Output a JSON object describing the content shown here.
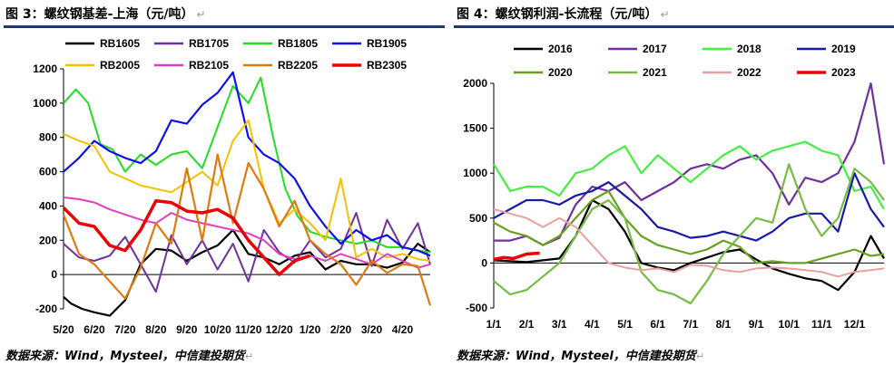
{
  "left": {
    "title": "图 3：螺纹钢基差-上海（元/吨）",
    "source": "数据来源：Wind，Mysteel，中信建投期货",
    "chart_data": {
      "type": "line",
      "title": "图 3：螺纹钢基差-上海（元/吨）",
      "xlabel": "",
      "ylabel": "",
      "ylim": [
        -200,
        1200
      ],
      "yticks": [
        -200,
        0,
        200,
        400,
        600,
        800,
        1000,
        1200
      ],
      "xticks": [
        "5/20",
        "6/20",
        "7/20",
        "8/20",
        "9/20",
        "10/20",
        "11/20",
        "12/20",
        "1/20",
        "2/20",
        "3/20",
        "4/20"
      ],
      "legend": "top",
      "series": [
        {
          "name": "RB1605",
          "color": "#000000",
          "width": 2.2,
          "x": [
            0,
            0.25,
            0.6,
            1,
            1.5,
            2,
            2.5,
            3,
            3.5,
            4,
            4.5,
            5,
            5.5,
            6,
            6.5,
            7,
            7.5,
            8,
            8.5,
            9,
            9.5,
            10,
            10.5,
            11,
            11.5,
            11.9
          ],
          "y": [
            -130,
            -170,
            -200,
            -220,
            -240,
            -150,
            60,
            150,
            140,
            80,
            130,
            170,
            260,
            120,
            100,
            60,
            110,
            130,
            30,
            80,
            60,
            60,
            40,
            70,
            180,
            130
          ]
        },
        {
          "name": "RB1705",
          "color": "#7030a0",
          "width": 2.0,
          "x": [
            0,
            0.5,
            1,
            1.5,
            2,
            2.5,
            3,
            3.5,
            4,
            4.5,
            5,
            5.5,
            6,
            6.5,
            7,
            7.5,
            8,
            8.5,
            9,
            9.5,
            10,
            10.5,
            11,
            11.5,
            11.9
          ],
          "y": [
            180,
            100,
            80,
            110,
            220,
            60,
            -100,
            230,
            60,
            200,
            30,
            180,
            -40,
            260,
            130,
            70,
            200,
            100,
            150,
            360,
            50,
            320,
            150,
            300,
            60
          ]
        },
        {
          "name": "RB1805",
          "color": "#22dd22",
          "width": 2.0,
          "x": [
            0,
            0.4,
            0.8,
            1.2,
            1.6,
            2,
            2.5,
            3,
            3.5,
            4,
            4.5,
            5,
            5.5,
            6,
            6.4,
            6.8,
            7.2,
            7.6,
            8,
            8.5,
            9,
            9.5,
            10,
            10.5,
            11,
            11.5,
            11.9
          ],
          "y": [
            1000,
            1080,
            1000,
            760,
            730,
            600,
            700,
            640,
            700,
            720,
            620,
            860,
            1100,
            1000,
            1150,
            800,
            500,
            340,
            250,
            220,
            200,
            180,
            200,
            160,
            160,
            140,
            130
          ]
        },
        {
          "name": "RB1905",
          "color": "#1010ee",
          "width": 2.2,
          "x": [
            0,
            0.5,
            1,
            1.5,
            2,
            2.5,
            3,
            3.5,
            4,
            4.5,
            5,
            5.5,
            6,
            6.5,
            7,
            7.5,
            8,
            8.5,
            9,
            9.5,
            10,
            10.5,
            11,
            11.5,
            11.9
          ],
          "y": [
            600,
            680,
            780,
            720,
            680,
            650,
            720,
            900,
            880,
            990,
            1060,
            1180,
            800,
            700,
            650,
            560,
            400,
            280,
            180,
            260,
            200,
            230,
            160,
            140,
            110
          ]
        },
        {
          "name": "RB2005",
          "color": "#f5c200",
          "width": 2.0,
          "x": [
            0,
            0.5,
            1,
            1.5,
            2,
            2.5,
            3,
            3.5,
            4,
            4.5,
            5,
            5.5,
            6,
            6.5,
            7,
            7.5,
            8,
            8.5,
            9,
            9.5,
            10,
            10.5,
            11,
            11.5,
            11.9
          ],
          "y": [
            820,
            780,
            750,
            600,
            560,
            520,
            500,
            480,
            540,
            600,
            520,
            780,
            900,
            500,
            300,
            380,
            300,
            200,
            560,
            100,
            150,
            100,
            120,
            90,
            80
          ]
        },
        {
          "name": "RB2105",
          "color": "#e040c0",
          "width": 2.0,
          "x": [
            0,
            0.5,
            1,
            1.5,
            2,
            2.5,
            3,
            3.5,
            4,
            4.5,
            5,
            5.5,
            6,
            6.5,
            7,
            7.5,
            8,
            8.5,
            9,
            9.5,
            10,
            10.5,
            11,
            11.5,
            11.9
          ],
          "y": [
            450,
            440,
            420,
            380,
            350,
            320,
            300,
            360,
            320,
            300,
            280,
            260,
            240,
            200,
            120,
            90,
            110,
            80,
            120,
            90,
            60,
            120,
            80,
            40,
            60
          ]
        },
        {
          "name": "RB2205",
          "color": "#e07a10",
          "width": 2.2,
          "x": [
            0,
            0.5,
            1,
            1.5,
            2,
            2.5,
            3,
            3.5,
            4,
            4.5,
            5,
            5.5,
            6,
            6.5,
            7,
            7.5,
            8,
            8.5,
            9,
            9.5,
            10,
            10.5,
            11,
            11.5,
            11.9
          ],
          "y": [
            350,
            120,
            60,
            -40,
            -140,
            40,
            300,
            180,
            620,
            200,
            700,
            300,
            650,
            500,
            280,
            430,
            200,
            120,
            60,
            -60,
            80,
            10,
            60,
            50,
            -180
          ]
        },
        {
          "name": "RB2305",
          "color": "#ee0000",
          "width": 3.5,
          "x": [
            0,
            0.5,
            1,
            1.5,
            2,
            2.5,
            3,
            3.5,
            4,
            4.5,
            5,
            5.5,
            6,
            6.5,
            7,
            7.5,
            8
          ],
          "y": [
            390,
            300,
            280,
            170,
            140,
            260,
            430,
            420,
            370,
            360,
            380,
            330,
            200,
            100,
            0,
            80,
            110
          ]
        }
      ]
    }
  },
  "right": {
    "title": "图 4：螺纹钢利润-长流程（元/吨）",
    "source": "数据来源：Wind，Mysteel，中信建投期货",
    "chart_data": {
      "type": "line",
      "title": "图 4：螺纹钢利润-长流程（元/吨）",
      "xlabel": "",
      "ylabel": "",
      "ylim": [
        -500,
        2000
      ],
      "yticks": [
        -500,
        0,
        500,
        1000,
        1500,
        2000
      ],
      "xticks": [
        "1/1",
        "2/1",
        "3/1",
        "4/1",
        "5/1",
        "6/1",
        "7/1",
        "8/1",
        "9/1",
        "10/1",
        "11/1",
        "12/1"
      ],
      "legend": "top",
      "series": [
        {
          "name": "2016",
          "color": "#000000",
          "width": 2.2,
          "x": [
            1,
            1.5,
            2,
            2.5,
            3,
            3.5,
            4,
            4.5,
            5,
            5.5,
            6,
            6.5,
            7,
            7.5,
            8,
            8.5,
            9,
            9.5,
            10,
            10.5,
            11,
            11.5,
            12,
            12.5,
            12.9
          ],
          "y": [
            30,
            20,
            10,
            30,
            50,
            300,
            700,
            600,
            350,
            0,
            -50,
            -80,
            0,
            60,
            120,
            150,
            40,
            -60,
            -120,
            -170,
            -200,
            -300,
            -100,
            300,
            50
          ]
        },
        {
          "name": "2017",
          "color": "#7030a0",
          "width": 2.2,
          "x": [
            1,
            1.5,
            2,
            2.5,
            3,
            3.5,
            4,
            4.5,
            5,
            5.5,
            6,
            6.5,
            7,
            7.5,
            8,
            8.5,
            9,
            9.5,
            10,
            10.5,
            11,
            11.5,
            12,
            12.5,
            12.9
          ],
          "y": [
            250,
            250,
            300,
            200,
            280,
            650,
            850,
            800,
            900,
            700,
            800,
            900,
            1050,
            1100,
            1050,
            1150,
            1200,
            1000,
            650,
            950,
            900,
            1000,
            1350,
            2000,
            1100
          ]
        },
        {
          "name": "2018",
          "color": "#44ee44",
          "width": 2.2,
          "x": [
            1,
            1.5,
            2,
            2.5,
            3,
            3.5,
            4,
            4.5,
            5,
            5.5,
            6,
            6.5,
            7,
            7.5,
            8,
            8.5,
            9,
            9.5,
            10,
            10.5,
            11,
            11.5,
            12,
            12.5,
            12.9
          ],
          "y": [
            1100,
            800,
            850,
            850,
            750,
            1000,
            1050,
            1200,
            1300,
            1000,
            1200,
            1050,
            900,
            1050,
            1200,
            1300,
            1150,
            1250,
            1300,
            1350,
            1250,
            1200,
            800,
            850,
            600
          ]
        },
        {
          "name": "2019",
          "color": "#1a1aaa",
          "width": 2.2,
          "x": [
            1,
            1.5,
            2,
            2.5,
            3,
            3.5,
            4,
            4.5,
            5,
            5.5,
            6,
            6.5,
            7,
            7.5,
            8,
            8.5,
            9,
            9.5,
            10,
            10.5,
            11,
            11.5,
            12,
            12.5,
            12.9
          ],
          "y": [
            500,
            600,
            700,
            700,
            650,
            750,
            800,
            900,
            750,
            600,
            400,
            350,
            280,
            300,
            350,
            300,
            250,
            350,
            500,
            550,
            550,
            350,
            1000,
            600,
            400
          ]
        },
        {
          "name": "2020",
          "color": "#6aa020",
          "width": 2.2,
          "x": [
            1,
            1.5,
            2,
            2.5,
            3,
            3.5,
            4,
            4.5,
            5,
            5.5,
            6,
            6.5,
            7,
            7.5,
            8,
            8.5,
            9,
            9.5,
            10,
            10.5,
            11,
            11.5,
            12,
            12.5,
            12.9
          ],
          "y": [
            450,
            350,
            300,
            200,
            300,
            500,
            700,
            800,
            500,
            300,
            200,
            150,
            100,
            150,
            250,
            180,
            0,
            20,
            0,
            0,
            50,
            100,
            150,
            80,
            100
          ]
        },
        {
          "name": "2021",
          "color": "#77bb44",
          "width": 2.2,
          "x": [
            1,
            1.5,
            2,
            2.5,
            3,
            3.5,
            4,
            4.5,
            5,
            5.5,
            6,
            6.5,
            7,
            7.5,
            8,
            8.5,
            9,
            9.5,
            10,
            10.5,
            11,
            11.5,
            12,
            12.5,
            12.9
          ],
          "y": [
            -200,
            -350,
            -300,
            -150,
            0,
            300,
            600,
            700,
            500,
            -100,
            -300,
            -350,
            -450,
            -200,
            100,
            300,
            500,
            450,
            1100,
            600,
            300,
            500,
            1050,
            900,
            700
          ]
        },
        {
          "name": "2022",
          "color": "#e8a0a0",
          "width": 2.0,
          "x": [
            1,
            1.5,
            2,
            2.5,
            3,
            3.5,
            4,
            4.5,
            5,
            5.5,
            6,
            6.5,
            7,
            7.5,
            8,
            8.5,
            9,
            9.5,
            10,
            10.5,
            11,
            11.5,
            12,
            12.5,
            12.9
          ],
          "y": [
            600,
            550,
            500,
            400,
            500,
            400,
            200,
            0,
            -50,
            -80,
            -60,
            -100,
            -20,
            -30,
            -80,
            -100,
            -60,
            -50,
            -60,
            -80,
            -100,
            -150,
            -100,
            -80,
            -60
          ]
        },
        {
          "name": "2023",
          "color": "#ee0000",
          "width": 3.5,
          "x": [
            1,
            1.3,
            1.6,
            2,
            2.4
          ],
          "y": [
            40,
            60,
            50,
            100,
            110
          ]
        }
      ]
    }
  }
}
